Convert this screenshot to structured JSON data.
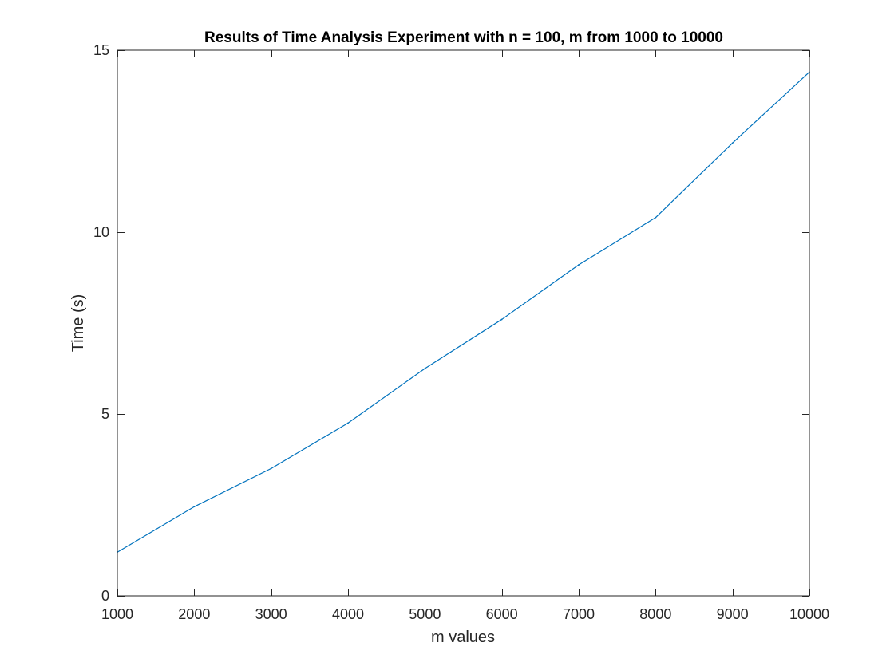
{
  "chart_data": {
    "type": "line",
    "title": "Results of Time Analysis Experiment with n = 100, m from 1000 to 10000",
    "xlabel": "m values",
    "ylabel": "Time (s)",
    "xlim": [
      1000,
      10000
    ],
    "ylim": [
      0,
      15
    ],
    "xticks": [
      1000,
      2000,
      3000,
      4000,
      5000,
      6000,
      7000,
      8000,
      9000,
      10000
    ],
    "yticks": [
      0,
      5,
      10,
      15
    ],
    "grid": false,
    "series": [
      {
        "color": "#0072BD",
        "x": [
          1000,
          2000,
          3000,
          4000,
          5000,
          6000,
          7000,
          8000,
          9000,
          10000
        ],
        "y": [
          1.2,
          2.45,
          3.5,
          4.75,
          6.25,
          7.6,
          9.1,
          10.4,
          12.45,
          14.4
        ]
      }
    ]
  },
  "colors": {
    "axis": "#262626",
    "background": "#ffffff"
  }
}
